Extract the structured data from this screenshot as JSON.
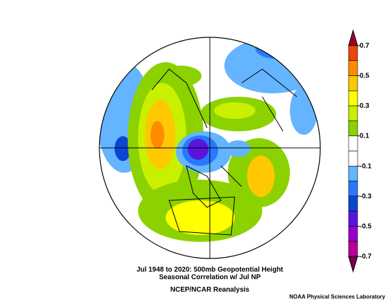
{
  "title_lines": [
    "Jul 1948 to 2020: 500mb Geopotential Height",
    "Seasonal Correlation w/ Jul NP"
  ],
  "source": "NCEP/NCAR Reanalysis",
  "credit": "NOAA Physical Sciences Laboratory",
  "colorbar": {
    "ticks": [
      0.7,
      0.5,
      0.3,
      0.1,
      -0.1,
      -0.3,
      -0.5,
      -0.7
    ],
    "colors": [
      "#a00028",
      "#e8460a",
      "#ff8c00",
      "#ffc800",
      "#ffff00",
      "#c8f000",
      "#8cd200",
      "#ffffff",
      "#ffffff",
      "#64b4ff",
      "#2878ff",
      "#0a46d2",
      "#5a14dc",
      "#9600c8",
      "#b40096",
      "#780050"
    ]
  }
}
